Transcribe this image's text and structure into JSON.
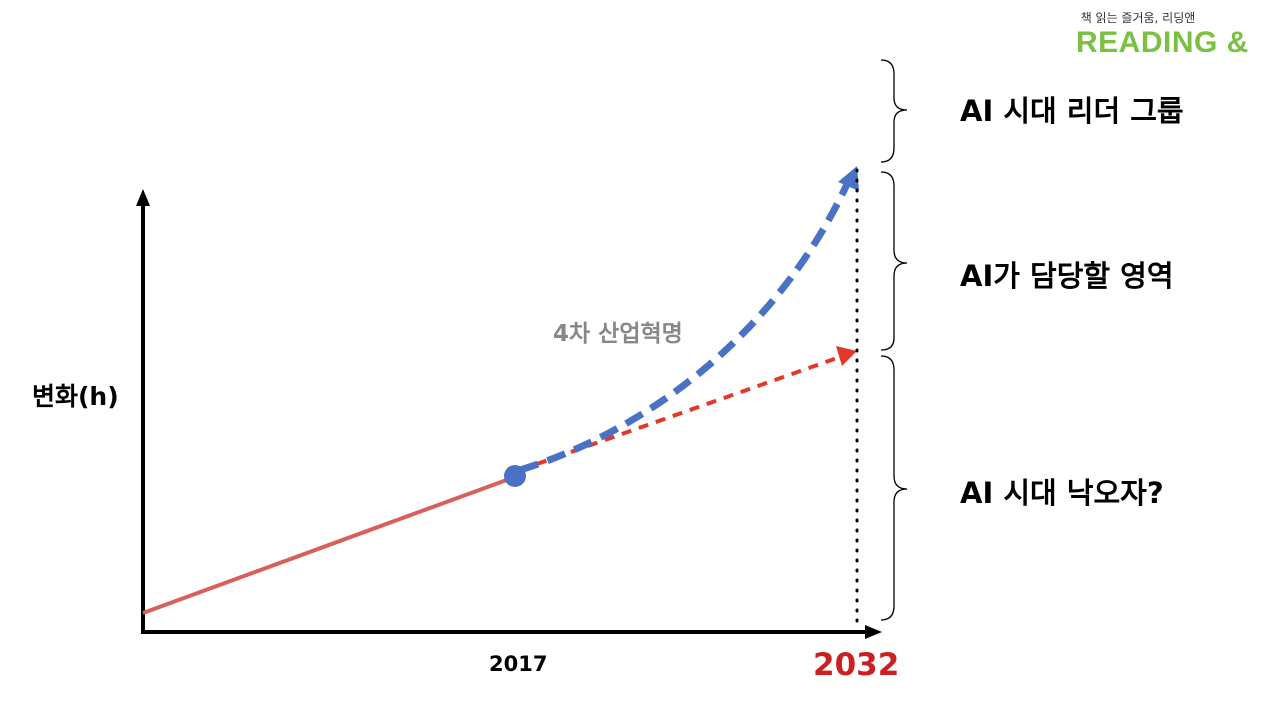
{
  "logo": {
    "tagline": "책 읽는 즐거움, 리딩앤",
    "wordmark": "READING &"
  },
  "colors": {
    "brand_green": "#7ac143",
    "baseline_red": "#d9605a",
    "projection_red": "#e0392b",
    "revolution_blue": "#4a72c4",
    "year_red": "#cc1f1f",
    "curve_label_gray": "#888888"
  },
  "axes": {
    "y_label": "변화(h)",
    "x_ticks": [
      "2017",
      "2032"
    ]
  },
  "curve_label": "4차 산업혁명",
  "groups": [
    "AI 시대 리더 그룹",
    "AI가 담당할 영역",
    "AI 시대 낙오자?"
  ]
}
